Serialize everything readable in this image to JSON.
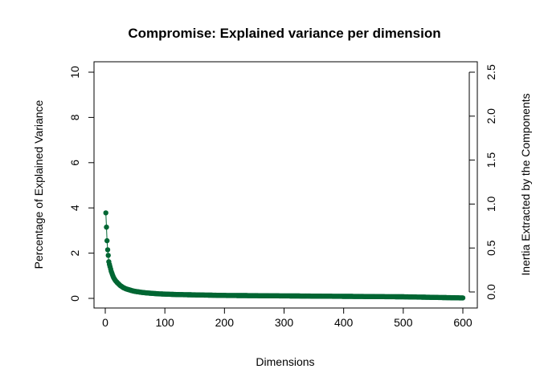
{
  "chart_data": {
    "type": "line",
    "title": "Compromise: Explained variance per dimension",
    "xlabel": "Dimensions",
    "ylabel": "Percentage of Explained Variance",
    "y2label": "Inertia Extracted by the Components",
    "xlim": [
      0,
      600
    ],
    "ylim": [
      0,
      10
    ],
    "y2lim": [
      0,
      2.5
    ],
    "x_ticks": [
      "0",
      "100",
      "200",
      "300",
      "400",
      "500",
      "600"
    ],
    "y_ticks": [
      "0",
      "2",
      "4",
      "6",
      "8",
      "10"
    ],
    "y2_ticks": [
      "0.0",
      "0.5",
      "1.0",
      "1.5",
      "2.0",
      "2.5"
    ],
    "series_color": "#006633",
    "grid": false,
    "legend": "none",
    "series": [
      {
        "x": [
          1,
          2,
          3,
          4,
          5,
          6,
          7,
          8,
          9,
          10,
          12,
          14,
          16,
          18,
          20,
          25,
          30,
          35,
          40,
          45,
          50,
          60,
          70,
          80,
          90,
          100,
          120,
          140,
          160,
          180,
          200,
          250,
          300,
          350,
          400,
          450,
          500,
          520,
          540,
          560,
          580,
          600
        ],
        "values": [
          3.78,
          3.15,
          2.55,
          2.15,
          1.9,
          1.62,
          1.5,
          1.4,
          1.3,
          1.2,
          1.05,
          0.92,
          0.83,
          0.76,
          0.7,
          0.57,
          0.48,
          0.42,
          0.38,
          0.34,
          0.31,
          0.27,
          0.24,
          0.22,
          0.2,
          0.19,
          0.17,
          0.16,
          0.15,
          0.14,
          0.13,
          0.12,
          0.11,
          0.1,
          0.09,
          0.08,
          0.07,
          0.06,
          0.05,
          0.04,
          0.03,
          0.02
        ]
      }
    ]
  }
}
